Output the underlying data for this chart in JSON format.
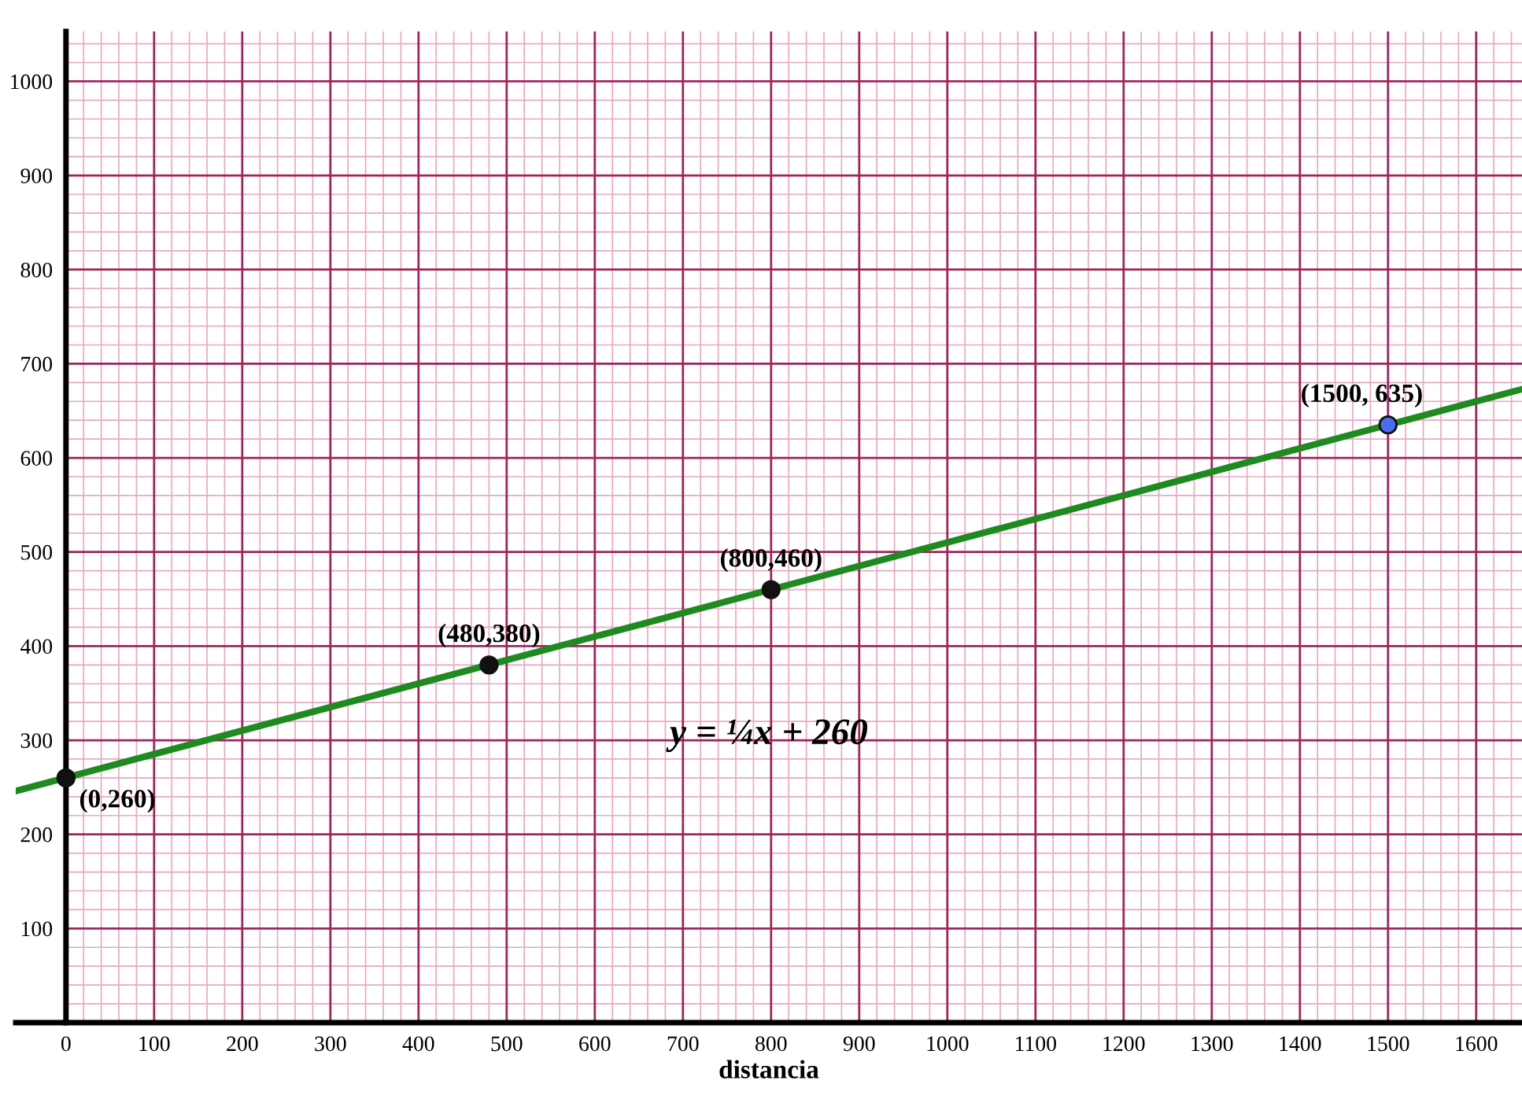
{
  "chart_data": {
    "type": "line",
    "xlabel": "distancia",
    "xlim": [
      -57,
      1652
    ],
    "ylim": [
      0,
      1053
    ],
    "xticks": [
      0,
      {
        "value": 20,
        "label": null
      },
      {
        "value": 40,
        "label": null
      },
      {
        "value": 60,
        "label": null
      },
      {
        "value": 80,
        "label": null
      },
      100,
      {
        "value": 120,
        "label": null
      },
      {
        "value": 140,
        "label": null
      },
      {
        "value": 160,
        "label": null
      },
      {
        "value": 180,
        "label": null
      },
      200,
      {
        "value": 220,
        "label": null
      },
      {
        "value": 240,
        "label": null
      },
      {
        "value": 260,
        "label": null
      },
      {
        "value": 280,
        "label": null
      },
      300,
      {
        "value": 320,
        "label": null
      },
      {
        "value": 340,
        "label": null
      },
      {
        "value": 360,
        "label": null
      },
      {
        "value": 380,
        "label": null
      },
      400,
      {
        "value": 420,
        "label": null
      },
      {
        "value": 440,
        "label": null
      },
      {
        "value": 460,
        "label": null
      },
      {
        "value": 480,
        "label": null
      },
      500,
      {
        "value": 520,
        "label": null
      },
      {
        "value": 540,
        "label": null
      },
      {
        "value": 560,
        "label": null
      },
      {
        "value": 580,
        "label": null
      },
      600,
      {
        "value": 620,
        "label": null
      },
      {
        "value": 640,
        "label": null
      },
      {
        "value": 660,
        "label": null
      },
      {
        "value": 680,
        "label": null
      },
      700,
      {
        "value": 720,
        "label": null
      },
      {
        "value": 740,
        "label": null
      },
      {
        "value": 760,
        "label": null
      },
      {
        "value": 780,
        "label": null
      },
      800,
      {
        "value": 820,
        "label": null
      },
      {
        "value": 840,
        "label": null
      },
      {
        "value": 860,
        "label": null
      },
      {
        "value": 880,
        "label": null
      },
      900,
      {
        "value": 920,
        "label": null
      },
      {
        "value": 940,
        "label": null
      },
      {
        "value": 960,
        "label": null
      },
      {
        "value": 980,
        "label": null
      },
      1000,
      {
        "value": 1020,
        "label": null
      },
      {
        "value": 1040,
        "label": null
      },
      {
        "value": 1060,
        "label": null
      },
      {
        "value": 1080,
        "label": null
      },
      1100,
      {
        "value": 1120,
        "label": null
      },
      {
        "value": 1140,
        "label": null
      },
      {
        "value": 1160,
        "label": null
      },
      {
        "value": 1180,
        "label": null
      },
      1200,
      {
        "value": 1220,
        "label": null
      },
      {
        "value": 1240,
        "label": null
      },
      {
        "value": 1260,
        "label": null
      },
      {
        "value": 1280,
        "label": null
      },
      1300,
      {
        "value": 1320,
        "label": null
      },
      {
        "value": 1340,
        "label": null
      },
      {
        "value": 1360,
        "label": null
      },
      {
        "value": 1380,
        "label": null
      },
      1400,
      {
        "value": 1420,
        "label": null
      },
      {
        "value": 1440,
        "label": null
      },
      {
        "value": 1460,
        "label": null
      },
      {
        "value": 1480,
        "label": null
      },
      1500,
      {
        "value": 1520,
        "label": null
      },
      {
        "value": 1540,
        "label": null
      },
      {
        "value": 1560,
        "label": null
      },
      {
        "value": 1580,
        "label": null
      },
      1600,
      {
        "value": 1620,
        "label": null
      },
      {
        "value": 1640,
        "label": null
      }
    ],
    "yticks": [
      {
        "value": 20,
        "label": null
      },
      {
        "value": 40,
        "label": null
      },
      {
        "value": 60,
        "label": null
      },
      {
        "value": 80,
        "label": null
      },
      100,
      {
        "value": 120,
        "label": null
      },
      {
        "value": 140,
        "label": null
      },
      {
        "value": 160,
        "label": null
      },
      {
        "value": 180,
        "label": null
      },
      200,
      {
        "value": 220,
        "label": null
      },
      {
        "value": 240,
        "label": null
      },
      {
        "value": 260,
        "label": null
      },
      {
        "value": 280,
        "label": null
      },
      300,
      {
        "value": 320,
        "label": null
      },
      {
        "value": 340,
        "label": null
      },
      {
        "value": 360,
        "label": null
      },
      {
        "value": 380,
        "label": null
      },
      400,
      {
        "value": 420,
        "label": null
      },
      {
        "value": 440,
        "label": null
      },
      {
        "value": 460,
        "label": null
      },
      {
        "value": 480,
        "label": null
      },
      500,
      {
        "value": 520,
        "label": null
      },
      {
        "value": 540,
        "label": null
      },
      {
        "value": 560,
        "label": null
      },
      {
        "value": 580,
        "label": null
      },
      600,
      {
        "value": 620,
        "label": null
      },
      {
        "value": 640,
        "label": null
      },
      {
        "value": 660,
        "label": null
      },
      {
        "value": 680,
        "label": null
      },
      700,
      {
        "value": 720,
        "label": null
      },
      {
        "value": 740,
        "label": null
      },
      {
        "value": 760,
        "label": null
      },
      {
        "value": 780,
        "label": null
      },
      800,
      {
        "value": 820,
        "label": null
      },
      {
        "value": 840,
        "label": null
      },
      {
        "value": 860,
        "label": null
      },
      {
        "value": 880,
        "label": null
      },
      900,
      {
        "value": 920,
        "label": null
      },
      {
        "value": 940,
        "label": null
      },
      {
        "value": 960,
        "label": null
      },
      {
        "value": 980,
        "label": null
      },
      1000,
      {
        "value": 1020,
        "label": null
      },
      {
        "value": 1040,
        "label": null
      }
    ],
    "grid": true,
    "series": [
      {
        "color": "#1f8a1f",
        "x": [
          -57,
          1652
        ],
        "values": [
          246,
          673
        ]
      },
      {
        "type": "scatter",
        "x": [
          0,
          480,
          800,
          1500
        ],
        "values": [
          260,
          380,
          460,
          635
        ],
        "colors": [
          "#111111",
          "#111111",
          "#111111",
          "#4a6cf0"
        ],
        "marker": "circle"
      }
    ],
    "annotations": [
      {
        "text": "(0,260)",
        "x": 0,
        "y": 260
      },
      {
        "text": "(480,380)",
        "x": 480,
        "y": 380
      },
      {
        "text": "(800,460)",
        "x": 800,
        "y": 460
      },
      {
        "text": "(1500, 635)",
        "x": 1500,
        "y": 635
      },
      "y = ¼x + 260"
    ]
  }
}
